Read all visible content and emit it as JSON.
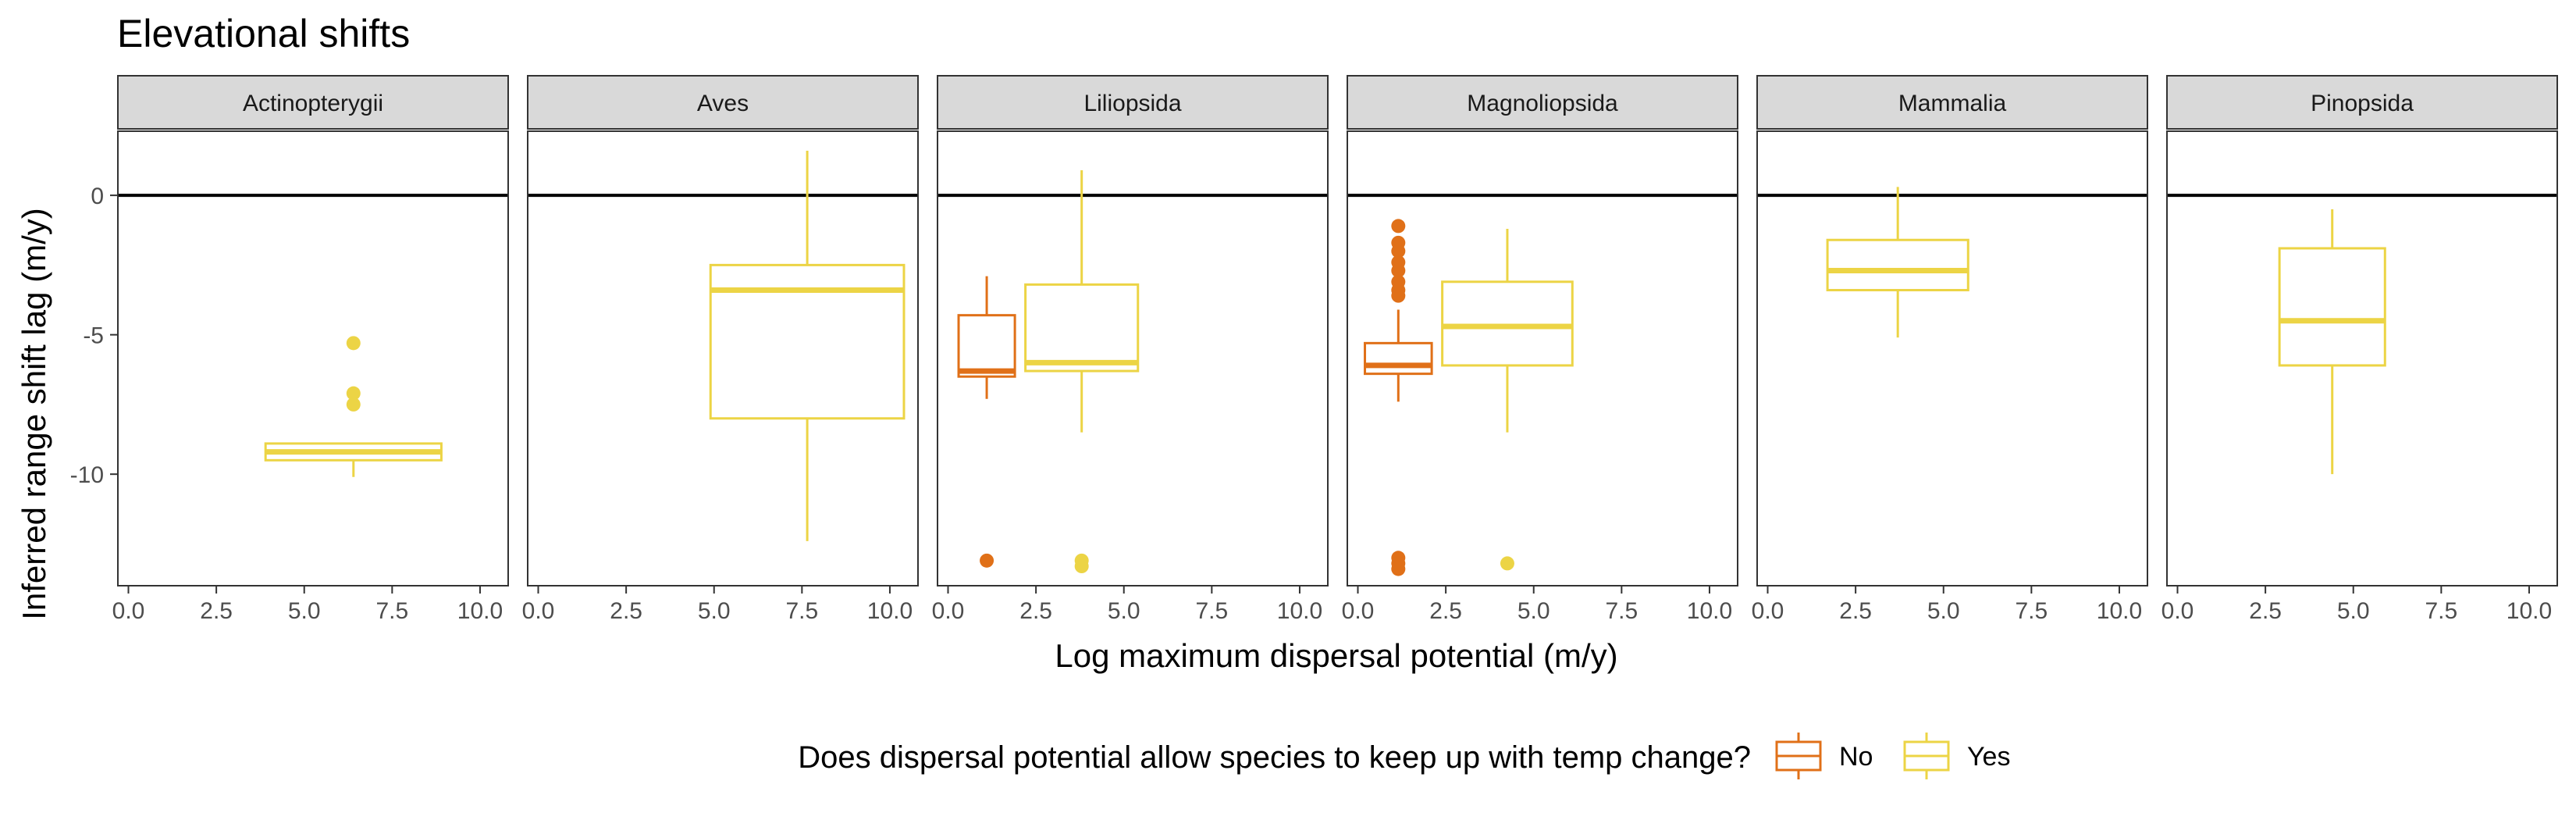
{
  "chart_data": {
    "type": "box",
    "title": "Elevational shifts",
    "xlabel": "Log maximum dispersal potential (m/y)",
    "ylabel": "Inferred range shift lag (m/y)",
    "xlim": [
      -0.3,
      10.8
    ],
    "ylim": [
      -14.0,
      2.3
    ],
    "x_ticks": [
      "0.0",
      "2.5",
      "5.0",
      "7.5",
      "10.0"
    ],
    "x_tick_values": [
      0,
      2.5,
      5,
      7.5,
      10
    ],
    "y_ticks": [
      "0",
      "-5",
      "-10"
    ],
    "y_tick_values": [
      0,
      -5,
      -10
    ],
    "reference_line": 0,
    "grid": false,
    "legend": {
      "title": "Does dispersal potential allow species to keep up with temp change?",
      "position": "bottom",
      "entries": [
        {
          "key": "No",
          "label": "No",
          "color": "#e07018"
        },
        {
          "key": "Yes",
          "label": "Yes",
          "color": "#ecd445"
        }
      ]
    },
    "facets": [
      {
        "label": "Actinopterygii",
        "boxes": [
          {
            "group": "Yes",
            "xmin": 3.9,
            "xmax": 8.9,
            "whisker_low": -10.1,
            "q1": -9.5,
            "median": -9.2,
            "q3": -8.9,
            "whisker_high": -8.9,
            "outliers": [
              -5.3,
              -7.1,
              -7.5
            ]
          }
        ]
      },
      {
        "label": "Aves",
        "boxes": [
          {
            "group": "Yes",
            "xmin": 4.9,
            "xmax": 10.4,
            "whisker_low": -12.4,
            "q1": -8.0,
            "median": -3.4,
            "q3": -2.5,
            "whisker_high": 1.6,
            "outliers": []
          }
        ]
      },
      {
        "label": "Liliopsida",
        "boxes": [
          {
            "group": "No",
            "xmin": 0.3,
            "xmax": 1.9,
            "whisker_low": -7.3,
            "q1": -6.5,
            "median": -6.3,
            "q3": -4.3,
            "whisker_high": -2.9,
            "outliers": [
              -13.1
            ]
          },
          {
            "group": "Yes",
            "xmin": 2.2,
            "xmax": 5.4,
            "whisker_low": -8.5,
            "q1": -6.3,
            "median": -6.0,
            "q3": -3.2,
            "whisker_high": 0.9,
            "outliers": [
              -13.1,
              -13.3
            ]
          }
        ]
      },
      {
        "label": "Magnoliopsida",
        "boxes": [
          {
            "group": "No",
            "xmin": 0.2,
            "xmax": 2.1,
            "whisker_low": -7.4,
            "q1": -6.4,
            "median": -6.1,
            "q3": -5.3,
            "whisker_high": -4.1,
            "outliers": [
              -1.1,
              -1.7,
              -2.0,
              -2.4,
              -2.7,
              -3.1,
              -3.4,
              -3.6,
              -13.0,
              -13.2,
              -13.4
            ]
          },
          {
            "group": "Yes",
            "xmin": 2.4,
            "xmax": 6.1,
            "whisker_low": -8.5,
            "q1": -6.1,
            "median": -4.7,
            "q3": -3.1,
            "whisker_high": -1.2,
            "outliers": [
              -13.2
            ]
          }
        ]
      },
      {
        "label": "Mammalia",
        "boxes": [
          {
            "group": "Yes",
            "xmin": 1.7,
            "xmax": 5.7,
            "whisker_low": -5.1,
            "q1": -3.4,
            "median": -2.7,
            "q3": -1.6,
            "whisker_high": 0.3,
            "outliers": []
          }
        ]
      },
      {
        "label": "Pinopsida",
        "boxes": [
          {
            "group": "Yes",
            "xmin": 2.9,
            "xmax": 5.9,
            "whisker_low": -10.0,
            "q1": -6.1,
            "median": -4.5,
            "q3": -1.9,
            "whisker_high": -0.5,
            "outliers": []
          }
        ]
      }
    ]
  }
}
